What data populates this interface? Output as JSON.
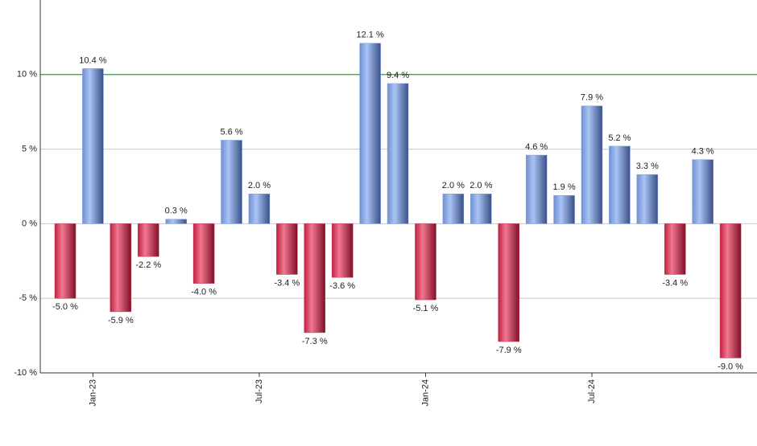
{
  "chart_data": {
    "type": "bar",
    "categories": [
      null,
      "Jan-23",
      null,
      null,
      null,
      null,
      null,
      "Jul-23",
      null,
      null,
      null,
      null,
      null,
      "Jan-24",
      null,
      null,
      null,
      null,
      null,
      "Jul-24",
      null,
      null,
      null,
      null,
      null
    ],
    "values": [
      -5.0,
      10.4,
      -5.9,
      -2.2,
      0.3,
      -4.0,
      5.6,
      2.0,
      -3.4,
      -7.3,
      -3.6,
      12.1,
      9.4,
      -5.1,
      2.0,
      2.0,
      -7.9,
      4.6,
      1.9,
      7.9,
      5.2,
      3.3,
      -3.4,
      4.3,
      -9.0
    ],
    "value_labels": [
      "-5.0 %",
      "10.4 %",
      "-5.9 %",
      "-2.2 %",
      "0.3 %",
      "-4.0 %",
      "5.6 %",
      "2.0 %",
      "-3.4 %",
      "-7.3 %",
      "-3.6 %",
      "12.1 %",
      "9.4 %",
      "-5.1 %",
      "2.0 %",
      "2.0 %",
      "-7.9 %",
      "4.6 %",
      "1.9 %",
      "7.9 %",
      "5.2 %",
      "3.3 %",
      "-3.4 %",
      "4.3 %",
      "-9.0 %"
    ],
    "positive_color": "#7f9fe0",
    "negative_color": "#d03050",
    "ylim": [
      -10,
      15
    ],
    "yticks": [
      {
        "value": -10,
        "label": "-10 %"
      },
      {
        "value": -5,
        "label": "-5 %"
      },
      {
        "value": 0,
        "label": "0 %"
      },
      {
        "value": 5,
        "label": "5 %"
      },
      {
        "value": 10,
        "label": "10 %"
      }
    ],
    "grid": true,
    "reference_line": {
      "value": 10,
      "color": "#2e7d32"
    }
  }
}
